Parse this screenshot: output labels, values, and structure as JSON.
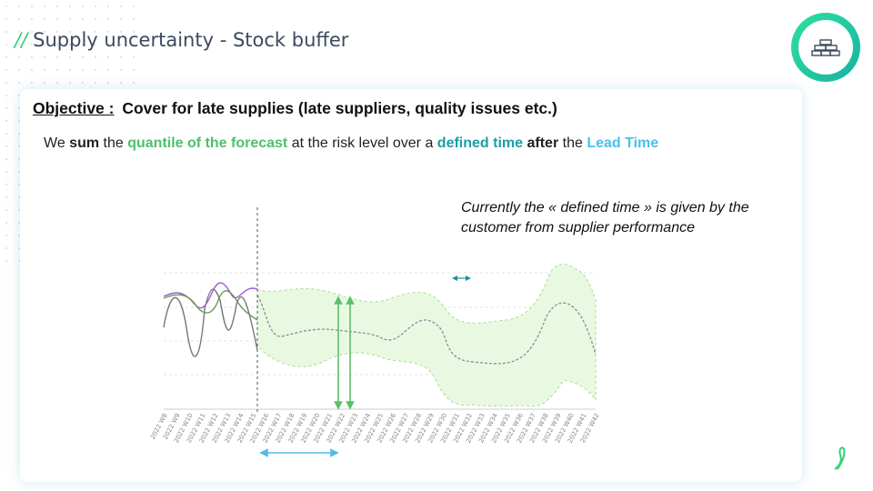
{
  "header": {
    "marker": "//",
    "title": "Supply uncertainty - Stock buffer"
  },
  "objective": {
    "label": "Objective :",
    "text": "Cover for late supplies (late suppliers, quality issues etc.)"
  },
  "sentence": [
    "We",
    "sum",
    "the",
    "quantile of the forecast",
    "at the risk level over a",
    "defined time",
    "after",
    "the",
    "Lead Time"
  ],
  "note": "Currently the « defined time » is given by the customer from supplier performance",
  "chart": {
    "x_labels": [
      "2022 W8",
      "2022 W9",
      "2022 W10",
      "2022 W11",
      "2022 W12",
      "2022 W13",
      "2022 W14",
      "2022 W15",
      "2022 W16",
      "2022 W17",
      "2022 W18",
      "2022 W19",
      "2022 W20",
      "2022 W21",
      "2022 W22",
      "2022 W23",
      "2022 W24",
      "2022 W25",
      "2022 W26",
      "2022 W27",
      "2022 W28",
      "2022 W29",
      "2022 W30",
      "2022 W31",
      "2022 W32",
      "2022 W33",
      "2022 W34",
      "2022 W35",
      "2022 W36",
      "2022 W37",
      "2022 W38",
      "2022 W39",
      "2022 W40",
      "2022 W41",
      "2022 W42"
    ]
  }
}
